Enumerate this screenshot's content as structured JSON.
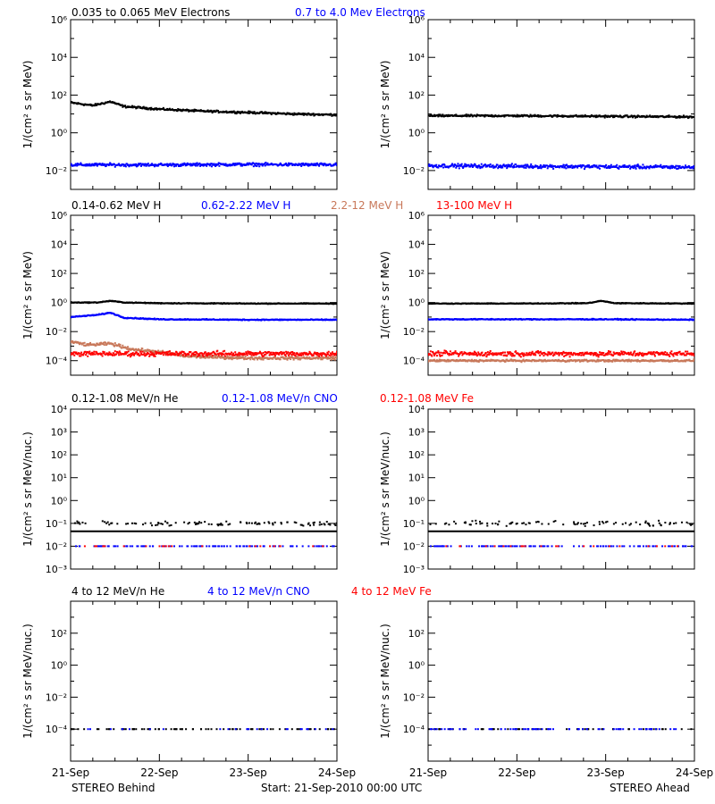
{
  "footer": {
    "left": "STEREO Behind",
    "center": "Start: 21-Sep-2010 00:00 UTC",
    "right": "STEREO Ahead"
  },
  "colors": {
    "black": "#000000",
    "blue": "#0000ff",
    "brown": "#c8785a",
    "red": "#ff0000"
  },
  "chart_data": [
    {
      "type": "scatter",
      "row": 1,
      "titles": [
        {
          "text": "0.035 to 0.065 MeV Electrons",
          "color": "#000000"
        },
        {
          "text": "0.7 to 4.0 Mev Electrons",
          "color": "#0000ff"
        }
      ],
      "ylabel": "1/(cm² s sr MeV)",
      "yscale": "log",
      "ylim": [
        0.001,
        1000000
      ],
      "yticks": [
        {
          "v": 0.01,
          "label": "10⁻²"
        },
        {
          "v": 1,
          "label": "10⁰"
        },
        {
          "v": 100,
          "label": "10²"
        },
        {
          "v": 10000,
          "label": "10⁴"
        },
        {
          "v": 1000000,
          "label": "10⁶"
        }
      ],
      "xlim": [
        0,
        3
      ],
      "xticks": [
        "21-Sep",
        "22-Sep",
        "23-Sep",
        "24-Sep"
      ],
      "panels": [
        {
          "side": "STEREO Behind",
          "series": [
            {
              "name": "0.035 to 0.065 MeV Electrons",
              "color": "#000000",
              "style": "dense",
              "x": [
                0,
                0.25,
                0.45,
                0.6,
                1.0,
                1.5,
                2.0,
                2.5,
                3.0
              ],
              "y": [
                40,
                28,
                45,
                25,
                18,
                14,
                12,
                10,
                9
              ],
              "spread": 0.08
            },
            {
              "name": "0.7 to 4.0 Mev Electrons",
              "color": "#0000ff",
              "style": "dense",
              "x": [
                0,
                1.0,
                2.0,
                3.0
              ],
              "y": [
                0.02,
                0.02,
                0.021,
                0.02
              ],
              "spread": 0.12
            }
          ]
        },
        {
          "side": "STEREO Ahead",
          "series": [
            {
              "name": "0.035 to 0.065 MeV Electrons",
              "color": "#000000",
              "style": "dense",
              "x": [
                0,
                1.0,
                2.0,
                3.0
              ],
              "y": [
                8,
                8,
                7.5,
                7
              ],
              "spread": 0.08
            },
            {
              "name": "0.7 to 4.0 Mev Electrons",
              "color": "#0000ff",
              "style": "dense",
              "x": [
                0,
                1.0,
                2.0,
                3.0
              ],
              "y": [
                0.018,
                0.017,
                0.016,
                0.015
              ],
              "spread": 0.15
            }
          ]
        }
      ]
    },
    {
      "type": "scatter",
      "row": 2,
      "titles": [
        {
          "text": "0.14-0.62 MeV H",
          "color": "#000000"
        },
        {
          "text": "0.62-2.22 MeV H",
          "color": "#0000ff"
        },
        {
          "text": "2.2-12 MeV H",
          "color": "#c8785a"
        },
        {
          "text": "13-100 MeV H",
          "color": "#ff0000"
        }
      ],
      "ylabel": "1/(cm² s sr MeV)",
      "yscale": "log",
      "ylim": [
        1e-05,
        1000000
      ],
      "yticks": [
        {
          "v": 0.0001,
          "label": "10⁻⁴"
        },
        {
          "v": 0.01,
          "label": "10⁻²"
        },
        {
          "v": 1,
          "label": "10⁰"
        },
        {
          "v": 100,
          "label": "10²"
        },
        {
          "v": 10000,
          "label": "10⁴"
        },
        {
          "v": 1000000,
          "label": "10⁶"
        }
      ],
      "xlim": [
        0,
        3
      ],
      "xticks": [
        "21-Sep",
        "22-Sep",
        "23-Sep",
        "24-Sep"
      ],
      "panels": [
        {
          "side": "STEREO Behind",
          "series": [
            {
              "name": "0.14-0.62 MeV H",
              "color": "#000000",
              "style": "dense",
              "x": [
                0,
                0.3,
                0.45,
                0.6,
                1.0,
                2.0,
                3.0
              ],
              "y": [
                1.0,
                1.0,
                1.3,
                1.0,
                0.9,
                0.85,
                0.85
              ],
              "spread": 0.04
            },
            {
              "name": "0.62-2.22 MeV H",
              "color": "#0000ff",
              "style": "dense",
              "x": [
                0,
                0.3,
                0.45,
                0.6,
                1.0,
                2.0,
                3.0
              ],
              "y": [
                0.1,
                0.14,
                0.2,
                0.09,
                0.07,
                0.065,
                0.065
              ],
              "spread": 0.05
            },
            {
              "name": "2.2-12 MeV H",
              "color": "#c8785a",
              "style": "dense",
              "x": [
                0,
                0.2,
                0.45,
                0.7,
                1.0,
                1.3,
                2.0,
                3.0
              ],
              "y": [
                0.002,
                0.0012,
                0.0015,
                0.0006,
                0.0004,
                0.0002,
                0.00015,
                0.00015
              ],
              "spread": 0.15
            },
            {
              "name": "13-100 MeV H",
              "color": "#ff0000",
              "style": "dense",
              "x": [
                0,
                1.0,
                2.0,
                3.0
              ],
              "y": [
                0.0003,
                0.0003,
                0.0003,
                0.0003
              ],
              "spread": 0.25
            }
          ]
        },
        {
          "side": "STEREO Ahead",
          "series": [
            {
              "name": "0.14-0.62 MeV H",
              "color": "#000000",
              "style": "dense",
              "x": [
                0,
                1.0,
                1.8,
                1.95,
                2.1,
                3.0
              ],
              "y": [
                0.85,
                0.85,
                0.9,
                1.3,
                0.9,
                0.85
              ],
              "spread": 0.04
            },
            {
              "name": "0.62-2.22 MeV H",
              "color": "#0000ff",
              "style": "dense",
              "x": [
                0,
                1.0,
                2.0,
                3.0
              ],
              "y": [
                0.07,
                0.07,
                0.07,
                0.065
              ],
              "spread": 0.05
            },
            {
              "name": "2.2-12 MeV H",
              "color": "#c8785a",
              "style": "dense",
              "x": [
                0,
                1.0,
                2.0,
                3.0
              ],
              "y": [
                0.0001,
                0.0001,
                0.0001,
                0.0001
              ],
              "spread": 0.1
            },
            {
              "name": "13-100 MeV H",
              "color": "#ff0000",
              "style": "dense",
              "x": [
                0,
                1.0,
                2.0,
                3.0
              ],
              "y": [
                0.0003,
                0.0003,
                0.0003,
                0.0003
              ],
              "spread": 0.25
            }
          ]
        }
      ]
    },
    {
      "type": "scatter",
      "row": 3,
      "titles": [
        {
          "text": "0.12-1.08 MeV/n He",
          "color": "#000000"
        },
        {
          "text": "0.12-1.08 MeV/n CNO",
          "color": "#0000ff"
        },
        {
          "text": "0.12-1.08 MeV Fe",
          "color": "#ff0000"
        }
      ],
      "ylabel": "1/(cm² s sr MeV/nuc.)",
      "yscale": "log",
      "ylim": [
        0.001,
        10000
      ],
      "yticks": [
        {
          "v": 0.001,
          "label": "10⁻³"
        },
        {
          "v": 0.01,
          "label": "10⁻²"
        },
        {
          "v": 0.1,
          "label": "10⁻¹"
        },
        {
          "v": 1,
          "label": "10⁰"
        },
        {
          "v": 10,
          "label": "10¹"
        },
        {
          "v": 100,
          "label": "10²"
        },
        {
          "v": 1000,
          "label": "10³"
        },
        {
          "v": 10000,
          "label": "10⁴"
        }
      ],
      "xlim": [
        0,
        3
      ],
      "xticks": [
        "21-Sep",
        "22-Sep",
        "23-Sep",
        "24-Sep"
      ],
      "panels": [
        {
          "side": "STEREO Behind",
          "series": [
            {
              "name": "0.12-1.08 MeV/n He",
              "color": "#000000",
              "style": "line",
              "x": [
                0,
                3
              ],
              "y": [
                0.045,
                0.045
              ]
            },
            {
              "name": "0.12-1.08 MeV/n He",
              "color": "#000000",
              "style": "sparse",
              "x": [
                0,
                3
              ],
              "y": [
                0.1,
                0.1
              ],
              "spread": 0.15,
              "count": 120
            },
            {
              "name": "0.12-1.08 MeV/n CNO",
              "color": "#0000ff",
              "style": "sparse",
              "x": [
                0,
                3
              ],
              "y": [
                0.01,
                0.01
              ],
              "spread": 0.0,
              "count": 140
            },
            {
              "name": "0.12-1.08 MeV Fe",
              "color": "#ff0000",
              "style": "sparse",
              "x": [
                0,
                3
              ],
              "y": [
                0.01,
                0.01
              ],
              "spread": 0.0,
              "count": 25
            }
          ]
        },
        {
          "side": "STEREO Ahead",
          "series": [
            {
              "name": "0.12-1.08 MeV/n He",
              "color": "#000000",
              "style": "line",
              "x": [
                0,
                3
              ],
              "y": [
                0.045,
                0.045
              ]
            },
            {
              "name": "0.12-1.08 MeV/n He",
              "color": "#000000",
              "style": "sparse",
              "x": [
                0,
                3
              ],
              "y": [
                0.1,
                0.1
              ],
              "spread": 0.15,
              "count": 110
            },
            {
              "name": "0.12-1.08 MeV/n CNO",
              "color": "#0000ff",
              "style": "sparse",
              "x": [
                0,
                3
              ],
              "y": [
                0.01,
                0.01
              ],
              "spread": 0.0,
              "count": 140
            },
            {
              "name": "0.12-1.08 MeV Fe",
              "color": "#ff0000",
              "style": "sparse",
              "x": [
                0,
                3
              ],
              "y": [
                0.01,
                0.01
              ],
              "spread": 0.0,
              "count": 25
            }
          ]
        }
      ]
    },
    {
      "type": "scatter",
      "row": 4,
      "titles": [
        {
          "text": "4 to 12 MeV/n He",
          "color": "#000000"
        },
        {
          "text": "4 to 12 MeV/n CNO",
          "color": "#0000ff"
        },
        {
          "text": "4 to 12 MeV Fe",
          "color": "#ff0000"
        }
      ],
      "ylabel": "1/(cm² s sr MeV/nuc.)",
      "yscale": "log",
      "ylim": [
        1e-06,
        10000
      ],
      "yticks": [
        {
          "v": 0.0001,
          "label": "10⁻⁴"
        },
        {
          "v": 0.01,
          "label": "10⁻²"
        },
        {
          "v": 1,
          "label": "10⁰"
        },
        {
          "v": 100,
          "label": "10²"
        }
      ],
      "xlim": [
        0,
        3
      ],
      "xticks": [
        "21-Sep",
        "22-Sep",
        "23-Sep",
        "24-Sep"
      ],
      "panels": [
        {
          "side": "STEREO Behind",
          "series": [
            {
              "name": "4 to 12 MeV/n He",
              "color": "#000000",
              "style": "sparse",
              "x": [
                0,
                3
              ],
              "y": [
                0.0001,
                0.0001
              ],
              "spread": 0.0,
              "count": 90
            },
            {
              "name": "4 to 12 MeV/n CNO",
              "color": "#0000ff",
              "style": "sparse",
              "x": [
                0,
                3
              ],
              "y": [
                0.0001,
                0.0001
              ],
              "spread": 0.0,
              "count": 30
            }
          ]
        },
        {
          "side": "STEREO Ahead",
          "series": [
            {
              "name": "4 to 12 MeV/n He",
              "color": "#000000",
              "style": "sparse",
              "x": [
                0,
                3
              ],
              "y": [
                0.0001,
                0.0001
              ],
              "spread": 0.0,
              "count": 60
            },
            {
              "name": "4 to 12 MeV/n CNO",
              "color": "#0000ff",
              "style": "sparse",
              "x": [
                0,
                3
              ],
              "y": [
                0.0001,
                0.0001
              ],
              "spread": 0.0,
              "count": 90
            }
          ]
        }
      ]
    }
  ]
}
